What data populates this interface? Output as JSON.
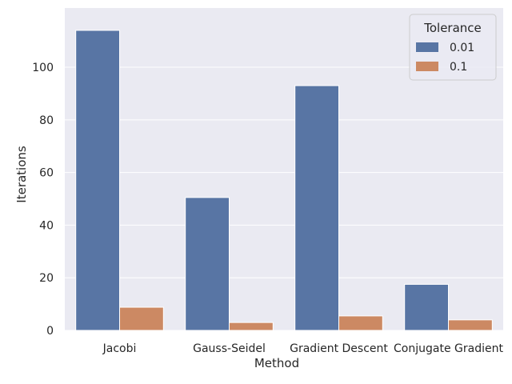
{
  "chart_data": {
    "type": "bar",
    "title": "",
    "xlabel": "Method",
    "ylabel": "Iterations",
    "categories": [
      "Jacobi",
      "Gauss-Seidel",
      "Gradient Descent",
      "Conjugate Gradient"
    ],
    "series": [
      {
        "name": "0.01",
        "values": [
          114,
          50.5,
          93,
          17.5
        ],
        "color": "#5875a4"
      },
      {
        "name": "0.1",
        "values": [
          8.8,
          3,
          5.5,
          4
        ],
        "color": "#cc8963"
      }
    ],
    "ylim": [
      0,
      120
    ],
    "yticks": [
      0,
      20,
      40,
      60,
      80,
      100
    ],
    "grid": true,
    "background": "#eaeaf2",
    "legend": {
      "title": "Tolerance",
      "placement": "top-right"
    }
  }
}
